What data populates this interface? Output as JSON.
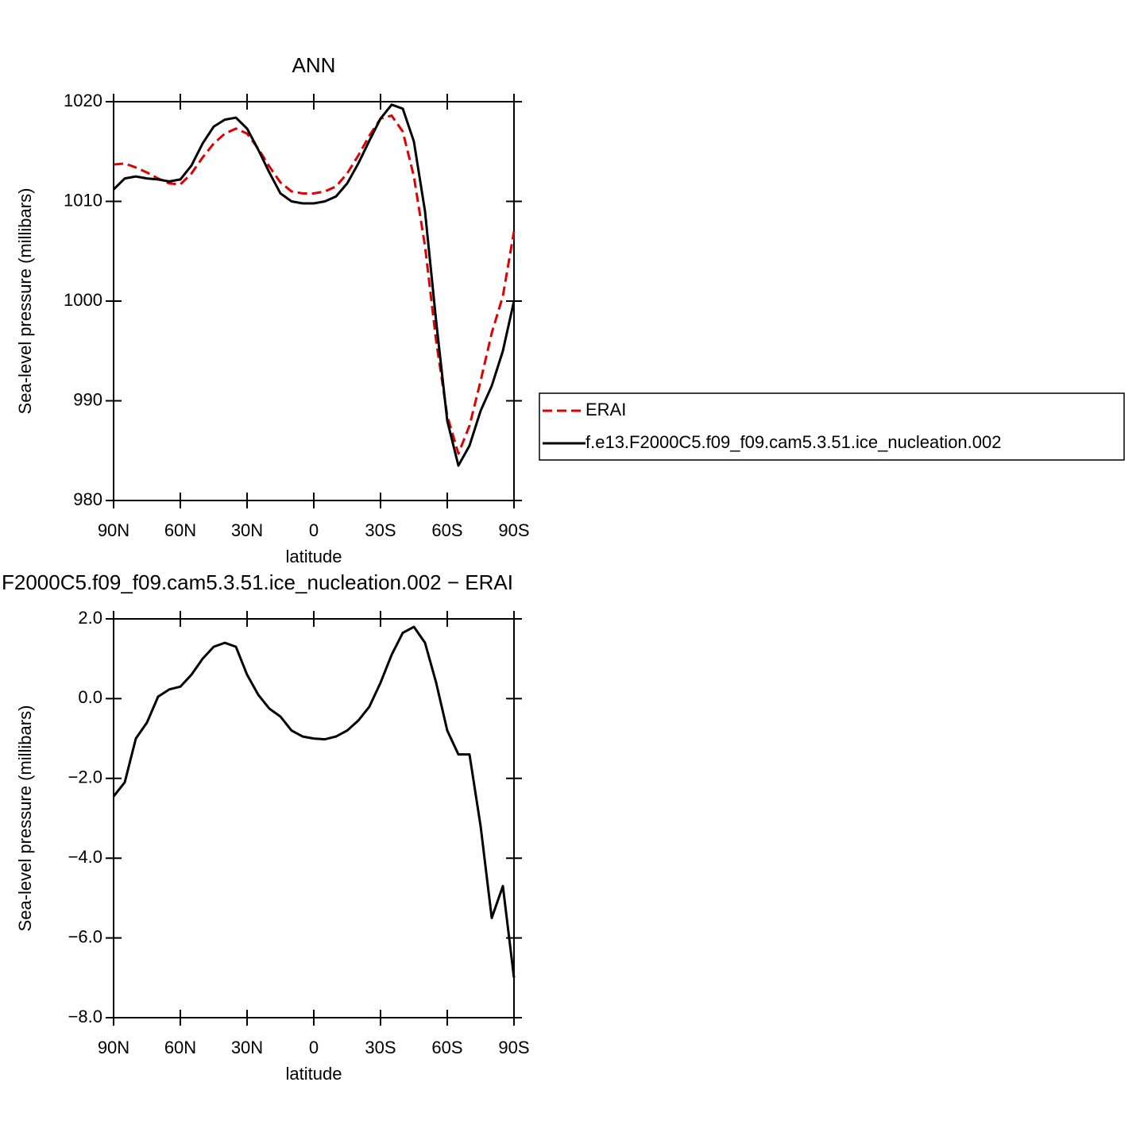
{
  "chart_data": [
    {
      "type": "line",
      "title": "ANN",
      "xlabel": "latitude",
      "ylabel": "Sea-level pressure (millibars)",
      "xlim": [
        90,
        -90
      ],
      "xticks": [
        {
          "value": 90,
          "label": "90N"
        },
        {
          "value": 60,
          "label": "60N"
        },
        {
          "value": 30,
          "label": "30N"
        },
        0,
        {
          "value": -30,
          "label": "30S"
        },
        {
          "value": -60,
          "label": "60S"
        },
        {
          "value": -90,
          "label": "90S"
        }
      ],
      "ylim": [
        980,
        1020
      ],
      "yticks": [
        980,
        990,
        1000,
        1010,
        1020
      ],
      "legend": "right",
      "x": [
        90,
        85,
        80,
        75,
        70,
        65,
        60,
        55,
        50,
        45,
        40,
        35,
        30,
        25,
        20,
        15,
        10,
        5,
        0,
        -5,
        -10,
        -15,
        -20,
        -25,
        -30,
        -35,
        -40,
        -45,
        -50,
        -55,
        -60,
        -65,
        -70,
        -75,
        -80,
        -85,
        -90
      ],
      "series": [
        {
          "name": "ERAI",
          "color": "#e00000",
          "style": "dashed",
          "values": [
            1013.7,
            1013.8,
            1013.4,
            1012.9,
            1012.3,
            1011.8,
            1011.7,
            1012.8,
            1014.4,
            1015.8,
            1016.8,
            1017.3,
            1016.8,
            1015.3,
            1013.5,
            1011.9,
            1011.0,
            1010.8,
            1010.8,
            1011.0,
            1011.5,
            1012.8,
            1014.6,
            1016.6,
            1018.3,
            1018.6,
            1017.0,
            1012.5,
            1005.5,
            996,
            988.5,
            984.7,
            987.5,
            992,
            996.8,
            1000.5,
            1007
          ]
        },
        {
          "name": "f.e13.F2000C5.f09_f09.cam5.3.51.ice_nucleation.002",
          "color": "#000000",
          "style": "solid",
          "values": [
            1011.2,
            1012.3,
            1012.5,
            1012.3,
            1012.2,
            1012.0,
            1012.2,
            1013.6,
            1015.8,
            1017.5,
            1018.2,
            1018.4,
            1017.3,
            1015.2,
            1012.9,
            1010.8,
            1010.0,
            1009.8,
            1009.8,
            1010.0,
            1010.5,
            1011.8,
            1013.8,
            1016.1,
            1018.3,
            1019.7,
            1019.3,
            1016,
            1009,
            998,
            988,
            983.5,
            985.5,
            989,
            991.5,
            995,
            1000
          ]
        }
      ]
    },
    {
      "type": "line",
      "title": "F2000C5.f09_f09.cam5.3.51.ice_nucleation.002 − ERAI",
      "xlabel": "latitude",
      "ylabel": "Sea-level pressure (millibars)",
      "xlim": [
        90,
        -90
      ],
      "xticks": [
        {
          "value": 90,
          "label": "90N"
        },
        {
          "value": 60,
          "label": "60N"
        },
        {
          "value": 30,
          "label": "30N"
        },
        0,
        {
          "value": -30,
          "label": "30S"
        },
        {
          "value": -60,
          "label": "60S"
        },
        {
          "value": -90,
          "label": "90S"
        }
      ],
      "ylim": [
        -8,
        2
      ],
      "yticks": [
        {
          "value": -8,
          "label": "−8.0"
        },
        {
          "value": -6,
          "label": "−6.0"
        },
        {
          "value": -4,
          "label": "−4.0"
        },
        {
          "value": -2,
          "label": "−2.0"
        },
        {
          "value": 0,
          "label": "0.0"
        },
        {
          "value": 2,
          "label": "2.0"
        }
      ],
      "x": [
        90,
        85,
        80,
        75,
        70,
        65,
        60,
        55,
        50,
        45,
        40,
        35,
        30,
        25,
        20,
        15,
        10,
        5,
        0,
        -5,
        -10,
        -15,
        -20,
        -25,
        -30,
        -35,
        -40,
        -45,
        -50,
        -55,
        -60,
        -65,
        -70,
        -75,
        -80,
        -85,
        -90
      ],
      "series": [
        {
          "color": "#000000",
          "style": "solid",
          "values": [
            -2.45,
            -2.1,
            -1.0,
            -0.6,
            0.05,
            0.23,
            0.3,
            0.6,
            1.0,
            1.3,
            1.4,
            1.3,
            0.6,
            0.1,
            -0.25,
            -0.45,
            -0.8,
            -0.95,
            -1.0,
            -1.02,
            -0.95,
            -0.8,
            -0.55,
            -0.2,
            0.4,
            1.1,
            1.65,
            1.8,
            1.4,
            0.4,
            -0.8,
            -1.4,
            -1.4,
            -3.2,
            -5.5,
            -4.7,
            -7.0
          ]
        }
      ]
    }
  ]
}
